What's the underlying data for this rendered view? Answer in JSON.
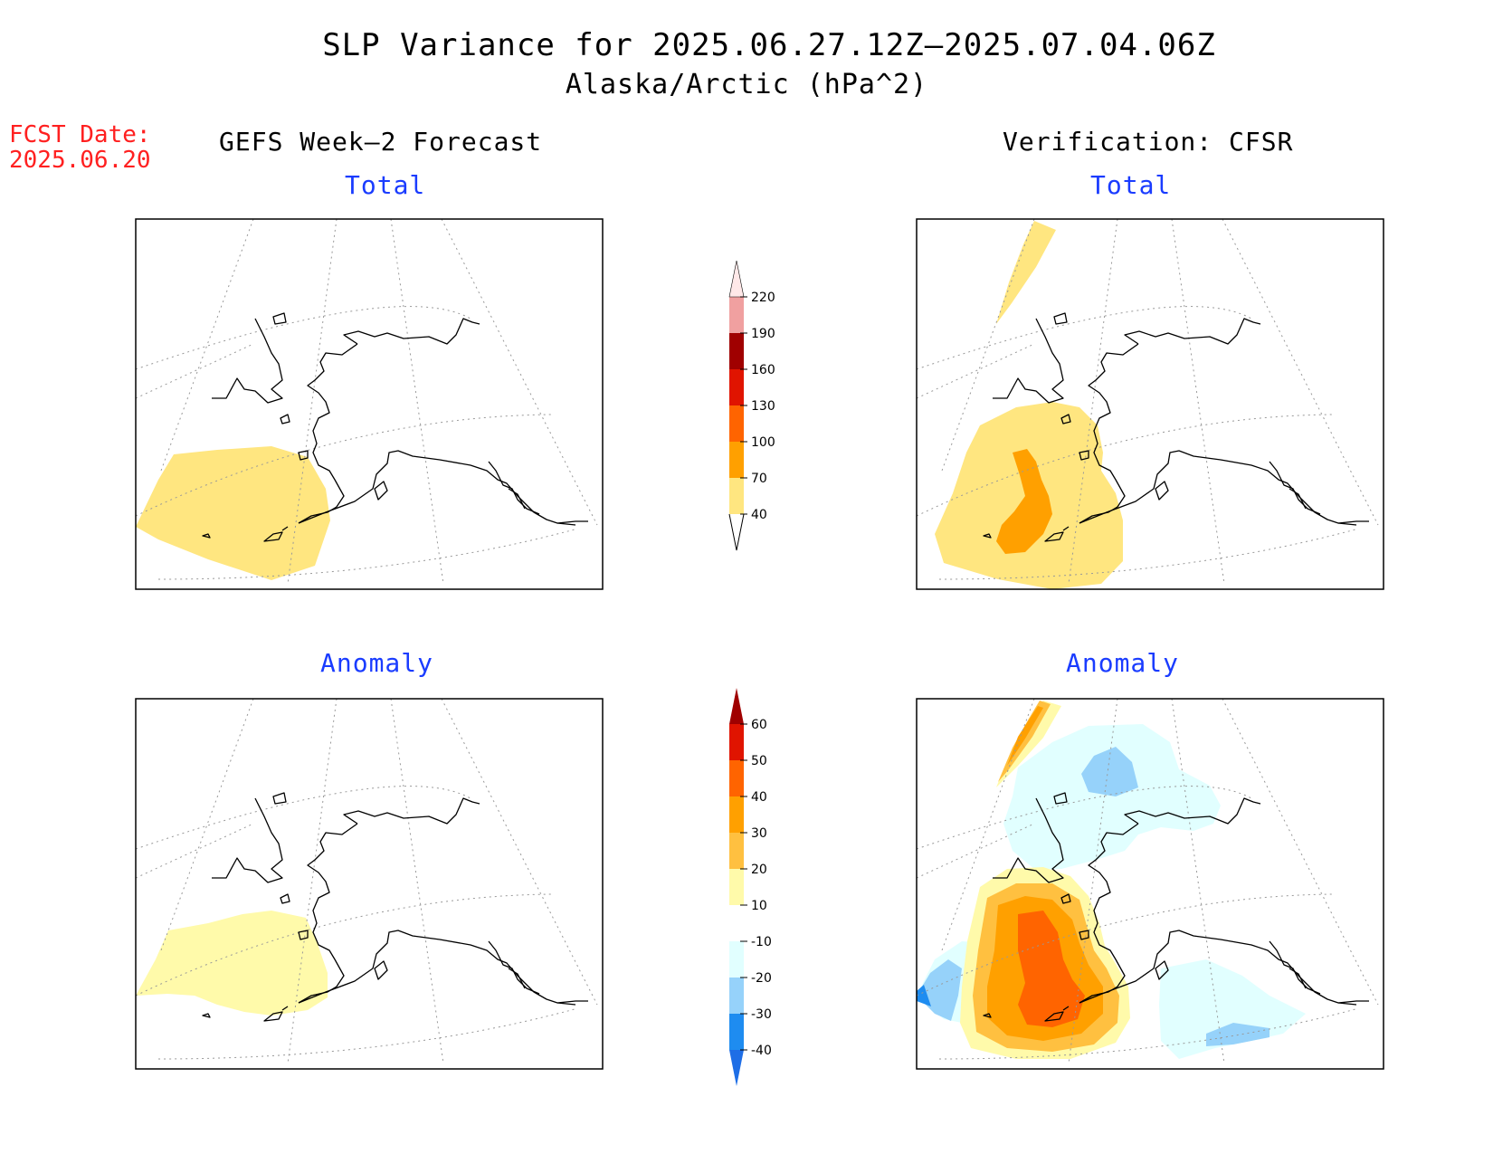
{
  "header": {
    "title": "SLP Variance for 2025.06.27.12Z–2025.07.04.06Z",
    "subtitle": "Alaska/Arctic (hPa^2)"
  },
  "fcst": {
    "label": "FCST Date:",
    "date": "2025.06.20"
  },
  "columns": {
    "left": "GEFS Week–2 Forecast",
    "right": "Verification: CFSR"
  },
  "panels": {
    "top_left_title": "Total",
    "top_right_title": "Total",
    "bottom_left_title": "Anomaly",
    "bottom_right_title": "Anomaly"
  },
  "colorbar_total": {
    "labels": [
      "40",
      "70",
      "100",
      "130",
      "160",
      "190",
      "220"
    ],
    "colors": [
      "#ffe680",
      "#ffa000",
      "#ff6400",
      "#e01400",
      "#a00000",
      "#f0a0a0",
      "#ffe8e8"
    ]
  },
  "colorbar_anomaly": {
    "labels": [
      "-40",
      "-30",
      "-20",
      "-10",
      "10",
      "20",
      "30",
      "40",
      "50",
      "60"
    ],
    "colors": [
      "#1e6ee6",
      "#1e8cf0",
      "#96d2fa",
      "#e1ffff",
      "#ffffff",
      "#fffaaa",
      "#ffc040",
      "#ffa000",
      "#ff6400",
      "#e01400",
      "#a00000"
    ]
  },
  "field_colors": {
    "yellow": "#ffe680",
    "pale_yellow": "#fffaaa",
    "orange": "#ffa000",
    "light_orange": "#ffc040",
    "red_orange": "#ff6400",
    "pale_cyan": "#e1ffff",
    "light_blue": "#96d2fa",
    "blue": "#1e8cf0"
  }
}
